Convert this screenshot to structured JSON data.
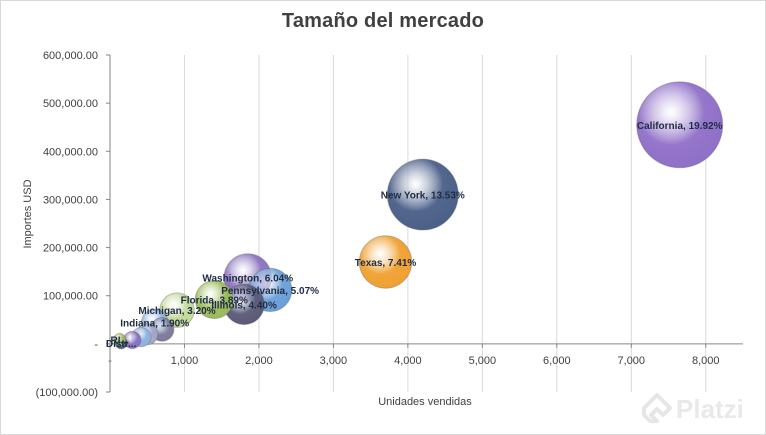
{
  "chart_data": {
    "type": "bubble",
    "title": "Tamaño  del mercado",
    "xlabel": "Unidades vendidas",
    "ylabel": "Importes USD",
    "xlim": [
      0,
      8500
    ],
    "ylim": [
      -100000,
      600000
    ],
    "xticks": [
      0,
      1000,
      2000,
      3000,
      4000,
      5000,
      6000,
      7000,
      8000
    ],
    "xtick_labels": [
      "-",
      "1,000",
      "2,000",
      "3,000",
      "4,000",
      "5,000",
      "6,000",
      "7,000",
      "8,000"
    ],
    "yticks": [
      -100000,
      0,
      100000,
      200000,
      300000,
      400000,
      500000,
      600000
    ],
    "ytick_labels": [
      "(100,000.00)",
      "-",
      "100,000.00",
      "200,000.00",
      "300,000.00",
      "400,000.00",
      "500,000.00",
      "600,000.00"
    ],
    "grid": "vertical",
    "points": [
      {
        "label": "California, 19.92%",
        "x": 7650,
        "y": 455000,
        "size": 19.92,
        "color": "#8f6fc8"
      },
      {
        "label": "New York, 13.53%",
        "x": 4200,
        "y": 310000,
        "size": 13.53,
        "color": "#4a5f88"
      },
      {
        "label": "Texas, 7.41%",
        "x": 3700,
        "y": 170000,
        "size": 7.41,
        "color": "#f0a030"
      },
      {
        "label": "Washington, 6.04%",
        "x": 1850,
        "y": 138000,
        "size": 6.04,
        "color": "#8a72bf"
      },
      {
        "label": "Pennsylvania, 5.07%",
        "x": 2150,
        "y": 112000,
        "size": 5.07,
        "color": "#6a9fd8"
      },
      {
        "label": "Illinois, 4.40%",
        "x": 1800,
        "y": 82000,
        "size": 4.4,
        "color": "#5a5a78"
      },
      {
        "label": "Florida, 3.89%",
        "x": 1400,
        "y": 92000,
        "size": 3.89,
        "color": "#9bbb59"
      },
      {
        "label": "Michigan, 3.20%",
        "x": 900,
        "y": 70000,
        "size": 3.2,
        "color": "#c5d99a"
      },
      {
        "label": "Indiana, 1.90%",
        "x": 600,
        "y": 44000,
        "size": 1.9,
        "color": "#8cb4e0"
      },
      {
        "label": "",
        "x": 700,
        "y": 30000,
        "size": 1.5,
        "color": "#7b7b9a"
      },
      {
        "label": "",
        "x": 500,
        "y": 20000,
        "size": 1.2,
        "color": "#a6a6c8"
      },
      {
        "label": "",
        "x": 420,
        "y": 14000,
        "size": 1.0,
        "color": "#8cb4e0"
      },
      {
        "label": "",
        "x": 300,
        "y": 8000,
        "size": 0.8,
        "color": "#8a72bf"
      },
      {
        "label": "Distr...",
        "x": 150,
        "y": 2000,
        "size": 0.3,
        "color": "#4a5f88"
      },
      {
        "label": "RI...",
        "x": 130,
        "y": 9000,
        "size": 0.3,
        "color": "#9bbb59"
      }
    ]
  },
  "watermark": {
    "text": "Platzi"
  }
}
